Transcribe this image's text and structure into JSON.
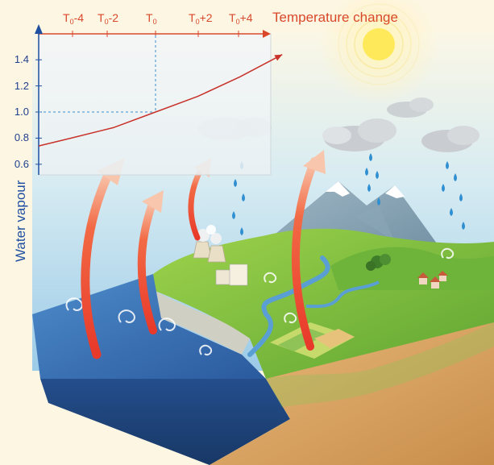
{
  "chart_data": {
    "type": "line",
    "xlabel": "Temperature change",
    "ylabel": "Water vapour",
    "x_ticks": [
      {
        "base": "T",
        "sub": "0",
        "suffix": "-4"
      },
      {
        "base": "T",
        "sub": "0",
        "suffix": "-2"
      },
      {
        "base": "T",
        "sub": "0",
        "suffix": ""
      },
      {
        "base": "T",
        "sub": "0",
        "suffix": "+2"
      },
      {
        "base": "T",
        "sub": "0",
        "suffix": "+4"
      }
    ],
    "y_ticks": [
      "1.4",
      "1.2",
      "1.0",
      "0.8",
      "0.6"
    ],
    "reference": {
      "x": "T0",
      "y": 1.0
    },
    "curve": {
      "x": [
        -6,
        -4,
        -2,
        0,
        2,
        4,
        6
      ],
      "y": [
        0.74,
        0.8,
        0.88,
        1.0,
        1.12,
        1.27,
        1.44
      ]
    }
  },
  "colors": {
    "axis_x": "#d9482b",
    "axis_y": "#1f4fa0",
    "curve": "#c8322a",
    "sea": "#2e63a8",
    "land": "#7cbf3a",
    "sky": "#b9dcef"
  },
  "icons": [
    "sun-icon",
    "cloud-icon",
    "rain-drop-icon",
    "power-plant-icon",
    "house-icon",
    "mountain-icon",
    "evaporation-arrow-icon"
  ]
}
